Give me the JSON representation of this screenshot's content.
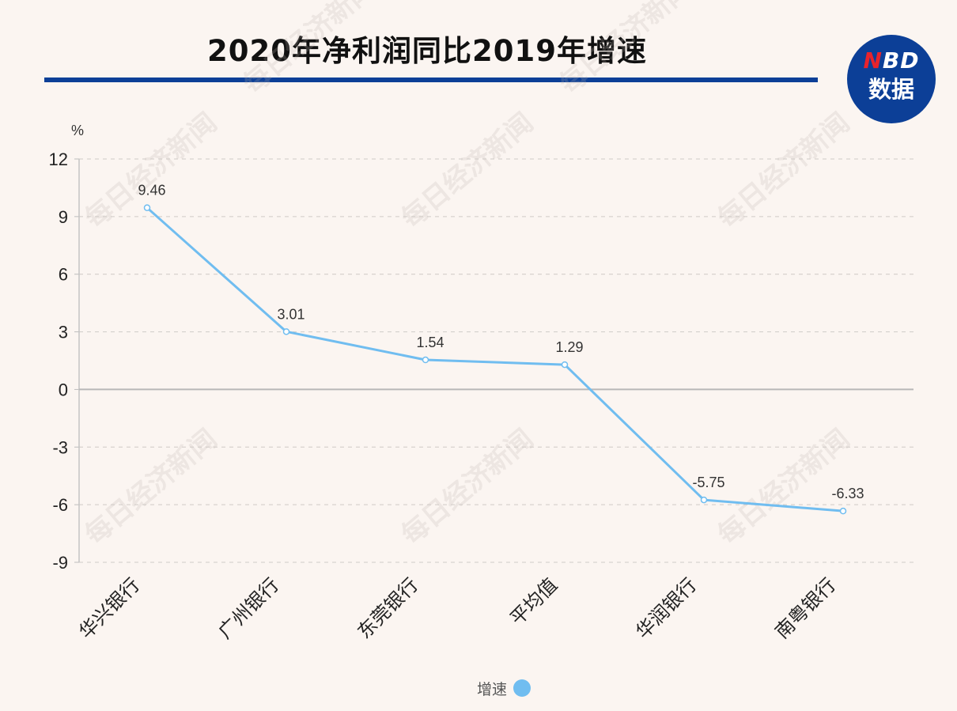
{
  "header": {
    "title": "2020年净利润同比2019年增速"
  },
  "logo": {
    "mark_n": "N",
    "mark_rest": "BD",
    "text": "数据"
  },
  "watermark": "每日经济新闻",
  "colors": {
    "title_rule": "#0c3f97",
    "logo_bg": "#0c3f97",
    "logo_n": "#e8232c",
    "series_line": "#70bdf0",
    "background": "#fbf5f1"
  },
  "chart_data": {
    "type": "line",
    "title": "2020年净利润同比2019年增速",
    "ylabel": "%",
    "xlabel": "",
    "ylim": [
      -9,
      12
    ],
    "yticks": [
      12,
      9,
      6,
      3,
      0,
      -3,
      -6,
      -9
    ],
    "grid": true,
    "legend_position": "bottom",
    "categories": [
      "华兴银行",
      "广州银行",
      "东莞银行",
      "平均值",
      "华润银行",
      "南粤银行"
    ],
    "series": [
      {
        "name": "增速",
        "color": "#70bdf0",
        "values": [
          9.46,
          3.01,
          1.54,
          1.29,
          -5.75,
          -6.33
        ],
        "labels": [
          "9.46",
          "3.01",
          "1.54",
          "1.29",
          "-5.75",
          "-6.33"
        ]
      }
    ]
  }
}
